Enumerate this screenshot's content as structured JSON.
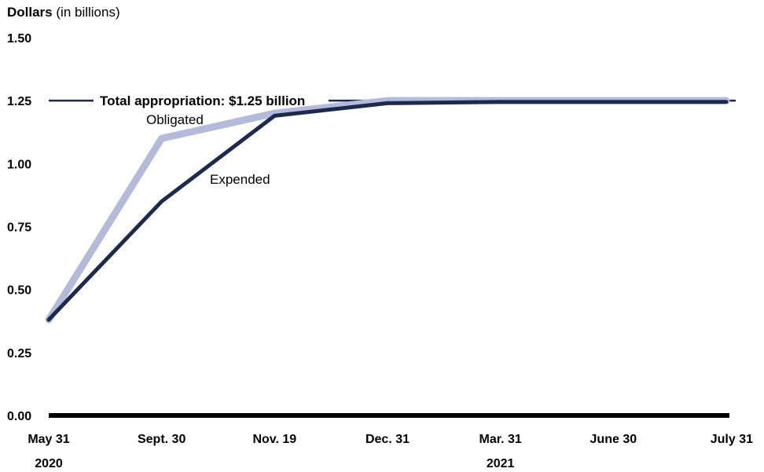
{
  "chart_data": {
    "type": "line",
    "ylabel": "Dollars",
    "ylabel_unit": "(in billions)",
    "ylim": [
      0,
      1.5
    ],
    "yticks": [
      "0.00",
      "0.25",
      "0.50",
      "0.75",
      "1.00",
      "1.25",
      "1.50"
    ],
    "categories": [
      "May 31",
      "Sept. 30",
      "Nov. 19",
      "Dec. 31",
      "Mar. 31",
      "June 30",
      "July 31"
    ],
    "year_labels": [
      {
        "label": "2020",
        "category_index": 0
      },
      {
        "label": "2021",
        "category_index": 4
      }
    ],
    "series": [
      {
        "name": "Obligated",
        "color": "#b4bad9",
        "values": [
          0.38,
          1.1,
          1.2,
          1.25,
          1.25,
          1.25,
          1.25
        ]
      },
      {
        "name": "Expended",
        "color": "#1b2a4e",
        "values": [
          0.38,
          0.85,
          1.19,
          1.24,
          1.245,
          1.245,
          1.245
        ]
      }
    ],
    "reference_line": {
      "label": "Total appropriation: $1.25 billion",
      "value": 1.25,
      "color": "#1b2a4e"
    },
    "grid": false,
    "legend": "inline labels"
  }
}
